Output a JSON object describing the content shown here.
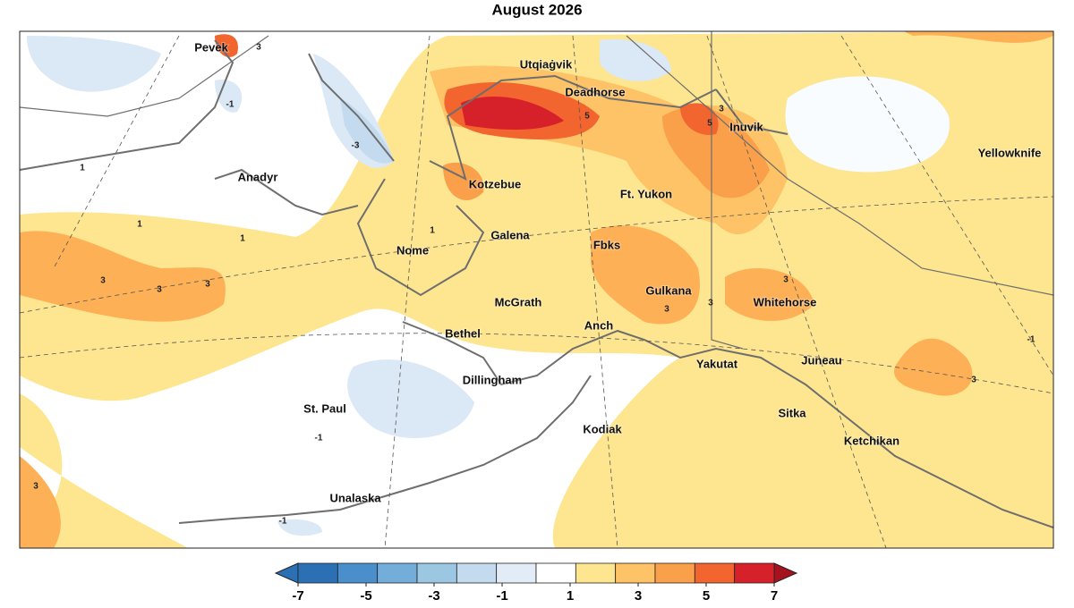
{
  "title": "August 2026",
  "places": [
    "Pevek",
    "Utqiaġvik",
    "Deadhorse",
    "Inuvik",
    "Yellowknife",
    "Anadyr",
    "Kotzebue",
    "Ft. Yukon",
    "Galena",
    "Nome",
    "Fbks",
    "McGrath",
    "Gulkana",
    "Whitehorse",
    "Bethel",
    "Anch",
    "Yakutat",
    "Juneau",
    "Dillingham",
    "St. Paul",
    "Sitka",
    "Kodiak",
    "Ketchikan",
    "Unalaska"
  ],
  "contour_labels": [
    "3",
    "-1",
    "-3",
    "1",
    "5",
    "5",
    "3",
    "3",
    "3",
    "3",
    "3",
    "3",
    "3",
    "3",
    "-1",
    "-1",
    "-1",
    "1",
    "1",
    "1",
    "3"
  ],
  "colorbar": {
    "range": [
      -7,
      7
    ],
    "ticks": [
      -7,
      -5,
      -3,
      -1,
      1,
      3,
      5,
      7
    ],
    "colors": [
      "#2b6fb5",
      "#4a8fcb",
      "#72aed9",
      "#9cc7e3",
      "#c4dbef",
      "#e1ecf7",
      "#ffffff",
      "#fde68f",
      "#fdc366",
      "#fa9f4a",
      "#f2652f",
      "#d6202a"
    ]
  }
}
